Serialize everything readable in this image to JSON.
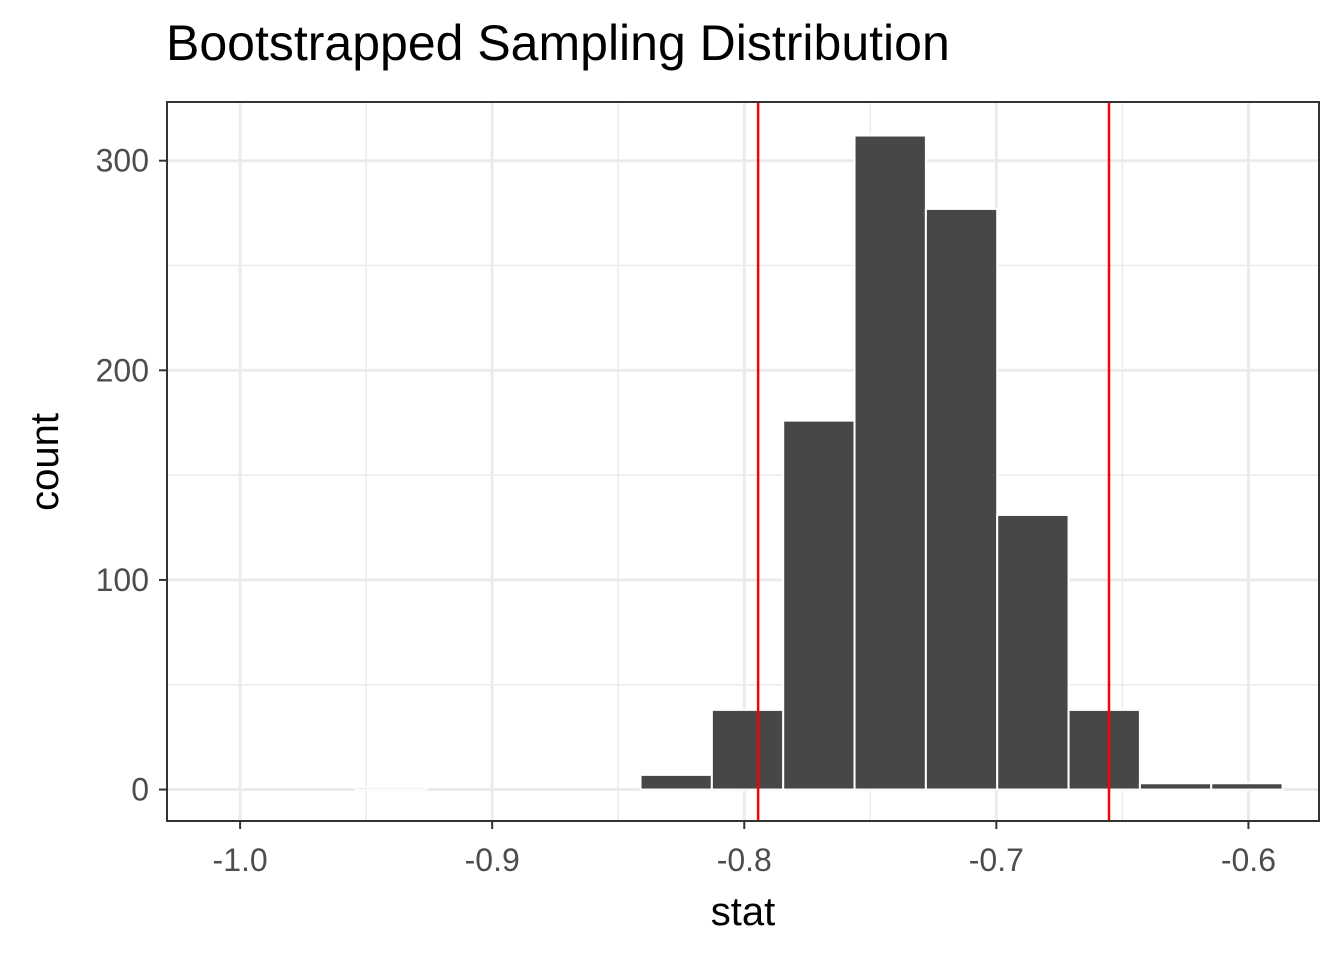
{
  "chart_data": {
    "type": "bar",
    "title": "Bootstrapped Sampling Distribution",
    "xlabel": "stat",
    "ylabel": "count",
    "xlim": [
      -1.029,
      -0.572
    ],
    "ylim": [
      -15,
      328
    ],
    "x_ticks": [
      -1.0,
      -0.9,
      -0.8,
      -0.7,
      -0.6
    ],
    "x_tick_labels": [
      "-1.0",
      "-0.9",
      "-0.8",
      "-0.7",
      "-0.6"
    ],
    "y_ticks": [
      0,
      100,
      200,
      300
    ],
    "y_tick_labels": [
      "0",
      "100",
      "200",
      "300"
    ],
    "bin_width": 0.0283,
    "bins": [
      {
        "center": -0.9968,
        "count": 0
      },
      {
        "center": -0.9685,
        "count": 0
      },
      {
        "center": -0.9402,
        "count": 1
      },
      {
        "center": -0.9119,
        "count": 0
      },
      {
        "center": -0.8836,
        "count": 0
      },
      {
        "center": -0.8553,
        "count": 0
      },
      {
        "center": -0.827,
        "count": 7
      },
      {
        "center": -0.7987,
        "count": 38
      },
      {
        "center": -0.7704,
        "count": 176
      },
      {
        "center": -0.7421,
        "count": 312
      },
      {
        "center": -0.7138,
        "count": 277
      },
      {
        "center": -0.6855,
        "count": 131
      },
      {
        "center": -0.6572,
        "count": 38
      },
      {
        "center": -0.6289,
        "count": 3
      },
      {
        "center": -0.6006,
        "count": 3
      }
    ],
    "ci_lines": [
      -0.7945,
      -0.6553
    ],
    "bar_color": "#474747",
    "bar_outline": "#ffffff",
    "ci_color": "#ff0000",
    "grid": true,
    "theme": "bw"
  }
}
